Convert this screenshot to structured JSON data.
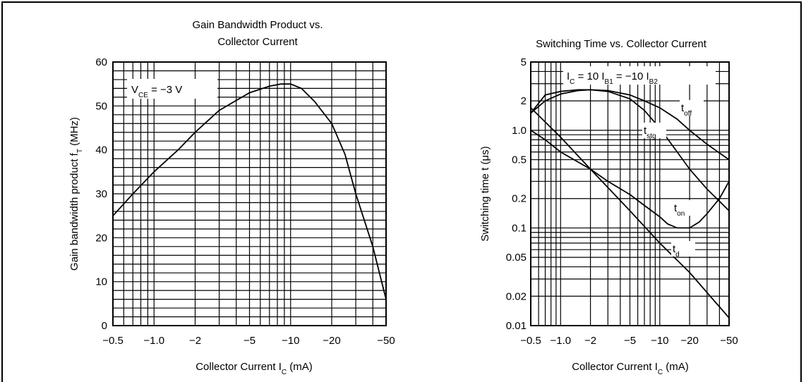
{
  "chart_data": [
    {
      "type": "line",
      "title_lines": [
        "Gain Bandwidth Product vs.",
        "Collector Current"
      ],
      "xlabel": "Collector Current",
      "xlabel_sym": "I",
      "xlabel_sub": "C",
      "xlabel_unit": "(mA)",
      "ylabel": "Gain bandwidth product",
      "ylabel_sym": "f",
      "ylabel_sub": "T",
      "ylabel_unit": "(MHz)",
      "x_scale": "log",
      "xlim": [
        -0.5,
        -50
      ],
      "ylim": [
        0,
        60
      ],
      "x_ticks": [
        {
          "value": -0.5,
          "label": "−0.5"
        },
        {
          "value": -1,
          "label": "−1.0"
        },
        {
          "value": -2,
          "label": "−2"
        },
        {
          "value": -5,
          "label": "−5"
        },
        {
          "value": -10,
          "label": "−10"
        },
        {
          "value": -20,
          "label": "−20"
        },
        {
          "value": -50,
          "label": "−50"
        }
      ],
      "y_ticks": [
        0,
        10,
        20,
        30,
        40,
        50,
        60
      ],
      "annotation": {
        "sym": "V",
        "sub": "CE",
        "text": "= −3 V"
      },
      "grid": true,
      "series": [
        {
          "x": [
            -0.5,
            -0.7,
            -1.0,
            -1.5,
            -2,
            -3,
            -5,
            -7,
            -8.5,
            -10,
            -12,
            -15,
            -20,
            -25,
            -30,
            -40,
            -50
          ],
          "y": [
            25,
            30,
            35,
            40,
            44,
            49,
            53,
            54.5,
            55,
            55,
            54,
            51,
            46,
            39,
            30,
            18,
            6
          ]
        }
      ]
    },
    {
      "type": "line",
      "title": "Switching Time vs. Collector Current",
      "xlabel": "Collector Current",
      "xlabel_sym": "I",
      "xlabel_sub": "C",
      "xlabel_unit": "(mA)",
      "ylabel": "Switching time",
      "ylabel_sym": "t",
      "ylabel_unit": "(μs)",
      "x_scale": "log",
      "y_scale": "log",
      "xlim": [
        -0.5,
        -50
      ],
      "ylim": [
        0.01,
        5
      ],
      "x_ticks": [
        {
          "value": -0.5,
          "label": "−0.5"
        },
        {
          "value": -1,
          "label": "−1.0"
        },
        {
          "value": -2,
          "label": "−2"
        },
        {
          "value": -5,
          "label": "−5"
        },
        {
          "value": -10,
          "label": "−10"
        },
        {
          "value": -20,
          "label": "−20"
        },
        {
          "value": -50,
          "label": "−50"
        }
      ],
      "y_ticks": [
        {
          "value": 0.01,
          "label": "0.01"
        },
        {
          "value": 0.02,
          "label": "0.02"
        },
        {
          "value": 0.05,
          "label": "0.05"
        },
        {
          "value": 0.1,
          "label": "0.1"
        },
        {
          "value": 0.2,
          "label": "0.2"
        },
        {
          "value": 0.5,
          "label": "0.5"
        },
        {
          "value": 1,
          "label": "1.0"
        },
        {
          "value": 2,
          "label": "2"
        },
        {
          "value": 5,
          "label": "5"
        }
      ],
      "annotation_parts": [
        {
          "sym": "I",
          "sub": "C"
        },
        {
          "text": " = 10 "
        },
        {
          "sym": "I",
          "sub": "B1"
        },
        {
          "text": " = −10 "
        },
        {
          "sym": "I",
          "sub": "B2"
        }
      ],
      "grid": true,
      "series": [
        {
          "name": "t",
          "sub": "off",
          "x": [
            -0.5,
            -0.7,
            -1.0,
            -1.5,
            -2,
            -3,
            -5,
            -7,
            -10,
            -15,
            -20,
            -30,
            -50
          ],
          "y": [
            1.5,
            2.0,
            2.35,
            2.55,
            2.6,
            2.55,
            2.3,
            2.0,
            1.7,
            1.3,
            1.0,
            0.72,
            0.5
          ]
        },
        {
          "name": "t",
          "sub": "stg",
          "x": [
            -0.5,
            -0.7,
            -1.0,
            -1.5,
            -2,
            -3,
            -5,
            -7,
            -10,
            -15,
            -20,
            -30,
            -50
          ],
          "y": [
            1.5,
            2.3,
            2.5,
            2.6,
            2.6,
            2.5,
            2.1,
            1.6,
            1.05,
            0.6,
            0.4,
            0.25,
            0.15
          ]
        },
        {
          "name": "t",
          "sub": "on",
          "x": [
            -0.5,
            -0.7,
            -1.0,
            -2,
            -3,
            -5,
            -7,
            -10,
            -12,
            -15,
            -20,
            -25,
            -30,
            -40,
            -50
          ],
          "y": [
            1.0,
            0.8,
            0.6,
            0.4,
            0.3,
            0.22,
            0.17,
            0.13,
            0.11,
            0.1,
            0.1,
            0.115,
            0.14,
            0.2,
            0.3
          ]
        },
        {
          "name": "t",
          "sub": "d",
          "x": [
            -0.5,
            -1.0,
            -2,
            -5,
            -10,
            -20,
            -50
          ],
          "y": [
            1.7,
            0.85,
            0.4,
            0.15,
            0.07,
            0.035,
            0.012
          ]
        }
      ]
    }
  ]
}
